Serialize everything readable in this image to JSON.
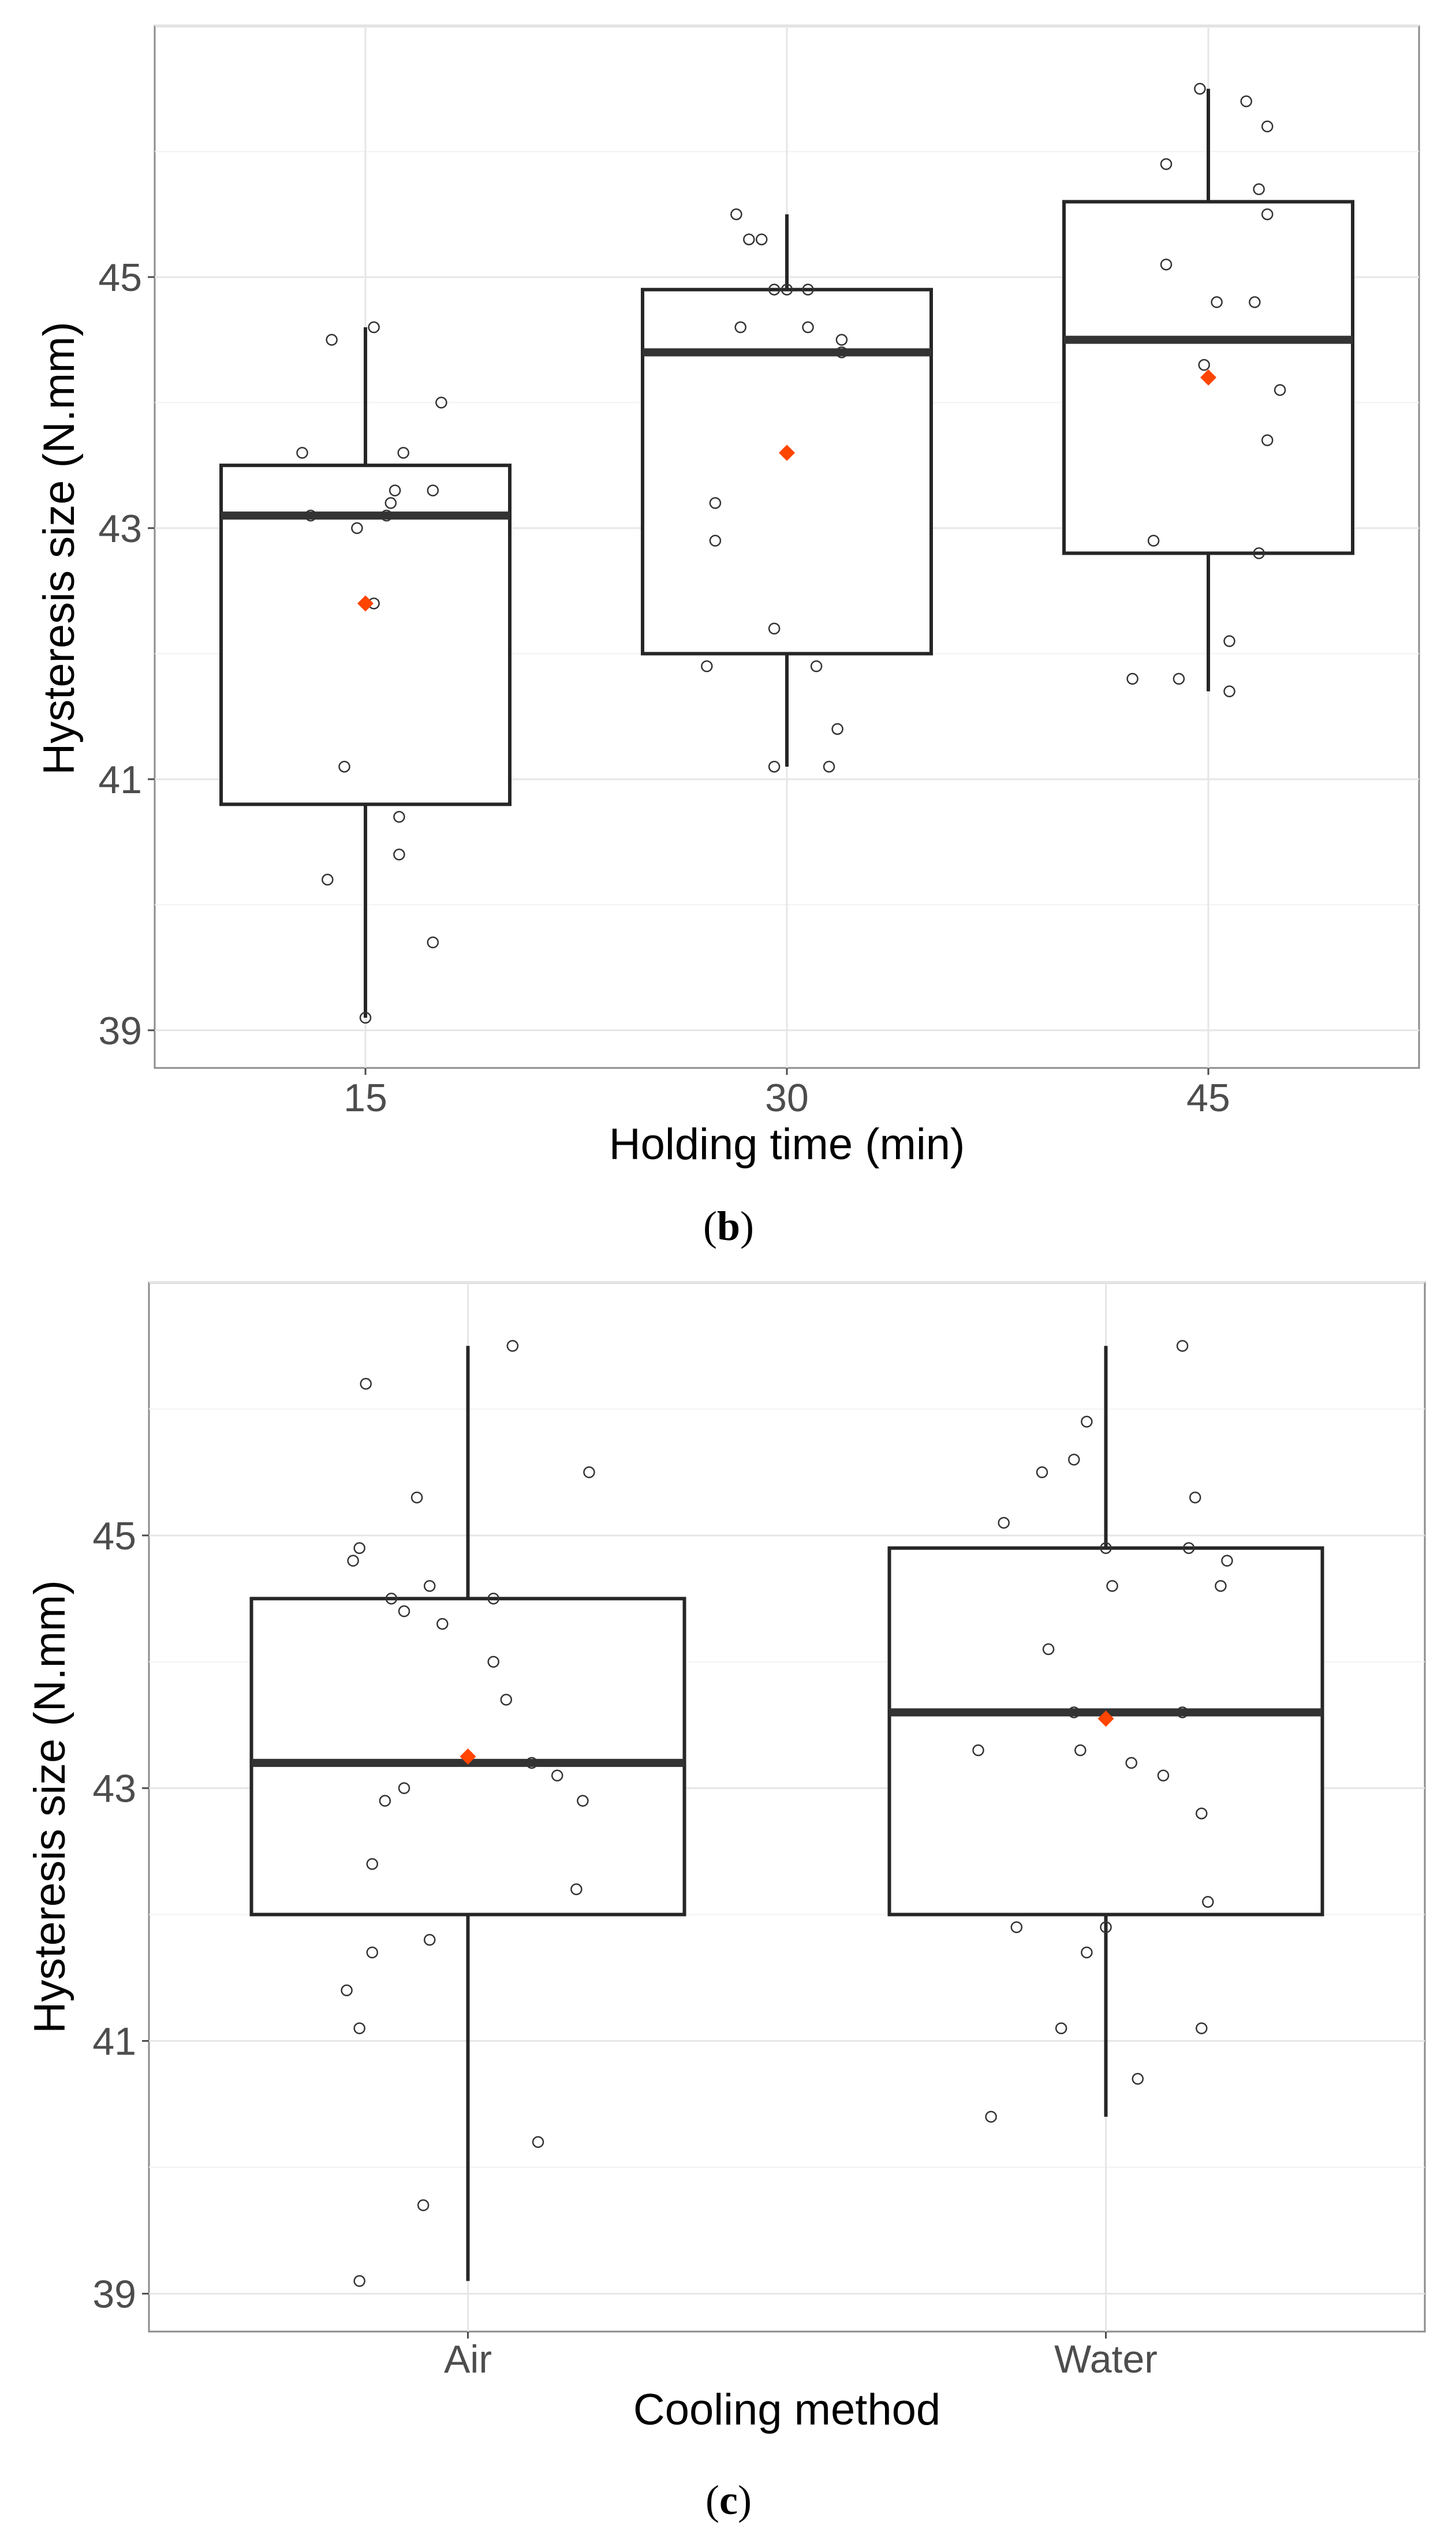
{
  "chart_data": [
    {
      "type": "box",
      "panel": "b",
      "caption_letter": "b",
      "xlabel": "Holding time (min)",
      "ylabel": "Hysteresis size (N.mm)",
      "ylim": [
        38.7,
        47.0
      ],
      "yticks": [
        39,
        41,
        43,
        45
      ],
      "grid": true,
      "categories": [
        "15",
        "30",
        "45"
      ],
      "boxes": [
        {
          "q1": 40.8,
          "median": 43.1,
          "q3": 43.5,
          "whisker_low": 39.1,
          "whisker_high": 44.6,
          "mean": 42.4,
          "points": [
            [
              -0.08,
              44.5
            ],
            [
              0.02,
              44.6
            ],
            [
              -0.15,
              43.6
            ],
            [
              0.09,
              43.6
            ],
            [
              0.18,
              44.0
            ],
            [
              -0.13,
              43.1
            ],
            [
              -0.02,
              43.0
            ],
            [
              0.06,
              43.2
            ],
            [
              0.07,
              43.3
            ],
            [
              0.16,
              43.3
            ],
            [
              0.05,
              43.1
            ],
            [
              0.02,
              42.4
            ],
            [
              -0.05,
              41.1
            ],
            [
              0.08,
              40.7
            ],
            [
              0.08,
              40.4
            ],
            [
              -0.09,
              40.2
            ],
            [
              0.16,
              39.7
            ],
            [
              0.0,
              39.1
            ]
          ]
        },
        {
          "q1": 42.0,
          "median": 44.4,
          "q3": 44.9,
          "whisker_low": 41.1,
          "whisker_high": 45.5,
          "mean": 43.6,
          "points": [
            [
              -0.12,
              45.5
            ],
            [
              -0.09,
              45.3
            ],
            [
              -0.06,
              45.3
            ],
            [
              -0.03,
              44.9
            ],
            [
              0.0,
              44.9
            ],
            [
              0.05,
              44.9
            ],
            [
              -0.11,
              44.6
            ],
            [
              0.05,
              44.6
            ],
            [
              0.13,
              44.5
            ],
            [
              0.13,
              44.4
            ],
            [
              -0.17,
              43.2
            ],
            [
              -0.17,
              42.9
            ],
            [
              -0.03,
              42.2
            ],
            [
              -0.19,
              41.9
            ],
            [
              0.07,
              41.9
            ],
            [
              0.12,
              41.4
            ],
            [
              -0.03,
              41.1
            ],
            [
              0.1,
              41.1
            ]
          ]
        },
        {
          "q1": 42.8,
          "median": 44.5,
          "q3": 45.6,
          "whisker_low": 41.7,
          "whisker_high": 46.5,
          "mean": 44.2,
          "points": [
            [
              -0.02,
              46.5
            ],
            [
              0.09,
              46.4
            ],
            [
              0.14,
              46.2
            ],
            [
              -0.1,
              45.9
            ],
            [
              0.12,
              45.7
            ],
            [
              0.14,
              45.5
            ],
            [
              -0.1,
              45.1
            ],
            [
              0.02,
              44.8
            ],
            [
              0.11,
              44.8
            ],
            [
              -0.01,
              44.3
            ],
            [
              0.17,
              44.1
            ],
            [
              0.14,
              43.7
            ],
            [
              -0.13,
              42.9
            ],
            [
              0.12,
              42.8
            ],
            [
              -0.18,
              41.8
            ],
            [
              -0.07,
              41.8
            ],
            [
              0.05,
              42.1
            ],
            [
              0.05,
              41.7
            ]
          ]
        }
      ],
      "points_style": "open-circle",
      "mean_color": "#ff4500"
    },
    {
      "type": "box",
      "panel": "c",
      "caption_letter": "c",
      "xlabel": "Cooling method",
      "ylabel": "Hysteresis size (N.mm)",
      "ylim": [
        38.7,
        47.0
      ],
      "yticks": [
        39,
        41,
        43,
        45
      ],
      "grid": true,
      "categories": [
        "Air",
        "Water"
      ],
      "boxes": [
        {
          "q1": 42.0,
          "median": 43.2,
          "q3": 44.5,
          "whisker_low": 39.1,
          "whisker_high": 46.5,
          "mean": 43.25,
          "points": [
            [
              -0.16,
              46.2
            ],
            [
              0.07,
              46.5
            ],
            [
              0.19,
              45.5
            ],
            [
              -0.08,
              45.3
            ],
            [
              -0.17,
              44.9
            ],
            [
              -0.18,
              44.8
            ],
            [
              -0.06,
              44.6
            ],
            [
              -0.12,
              44.5
            ],
            [
              -0.1,
              44.4
            ],
            [
              -0.04,
              44.3
            ],
            [
              0.04,
              44.5
            ],
            [
              0.04,
              44.0
            ],
            [
              0.06,
              43.7
            ],
            [
              0.1,
              43.2
            ],
            [
              0.14,
              43.1
            ],
            [
              -0.1,
              43.0
            ],
            [
              -0.13,
              42.9
            ],
            [
              0.18,
              42.9
            ],
            [
              -0.15,
              42.4
            ],
            [
              0.17,
              42.2
            ],
            [
              -0.15,
              41.7
            ],
            [
              -0.06,
              41.8
            ],
            [
              -0.19,
              41.4
            ],
            [
              -0.17,
              41.1
            ],
            [
              0.11,
              40.2
            ],
            [
              -0.07,
              39.7
            ],
            [
              -0.17,
              39.1
            ]
          ]
        },
        {
          "q1": 42.0,
          "median": 43.6,
          "q3": 44.9,
          "whisker_low": 40.4,
          "whisker_high": 46.5,
          "mean": 43.55,
          "points": [
            [
              0.12,
              46.5
            ],
            [
              -0.03,
              45.9
            ],
            [
              -0.05,
              45.6
            ],
            [
              -0.1,
              45.5
            ],
            [
              -0.16,
              45.1
            ],
            [
              0.14,
              45.3
            ],
            [
              0.0,
              44.9
            ],
            [
              0.13,
              44.9
            ],
            [
              0.19,
              44.8
            ],
            [
              0.18,
              44.6
            ],
            [
              0.01,
              44.6
            ],
            [
              -0.09,
              44.1
            ],
            [
              -0.05,
              43.6
            ],
            [
              0.12,
              43.6
            ],
            [
              -0.2,
              43.3
            ],
            [
              -0.04,
              43.3
            ],
            [
              0.04,
              43.2
            ],
            [
              0.09,
              43.1
            ],
            [
              0.15,
              42.8
            ],
            [
              0.16,
              42.1
            ],
            [
              0.0,
              41.9
            ],
            [
              -0.14,
              41.9
            ],
            [
              -0.03,
              41.7
            ],
            [
              -0.07,
              41.1
            ],
            [
              0.15,
              41.1
            ],
            [
              0.05,
              40.7
            ],
            [
              -0.18,
              40.4
            ]
          ]
        }
      ],
      "points_style": "open-circle",
      "mean_color": "#ff4500"
    }
  ]
}
